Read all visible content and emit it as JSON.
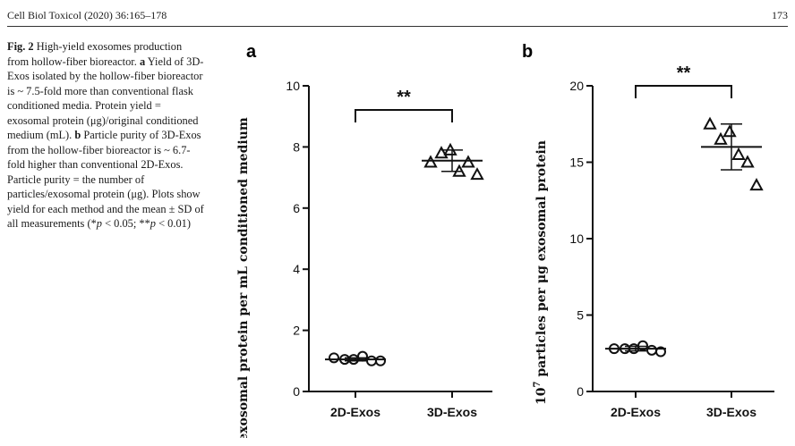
{
  "header": {
    "running_head": "Cell Biol Toxicol (2020) 36:165–178",
    "page_number": "173"
  },
  "caption": {
    "label": "Fig. 2",
    "title": " High-yield exosomes production from hollow-fiber bioreactor. ",
    "a_label": "a",
    "a_text": " Yield of 3D-Exos isolated by the hollow-fiber bioreactor is ~ 7.5-fold more than conventional flask conditioned media. Protein yield = exosomal protein (μg)/original conditioned medium (mL). ",
    "b_label": "b",
    "b_text": " Particle purity of 3D-Exos from the hollow-fiber bioreactor is ~ 6.7-fold higher than conventional 2D-Exos. Particle purity = the number of particles/exosomal protein (μg). Plots show yield for each method and the mean ± SD of all measurements (*",
    "p1": "p",
    "mid": " < 0.05; **",
    "p2": "p",
    "end": " < 0.01)"
  },
  "chart_data": [
    {
      "type": "scatter",
      "panel": "a",
      "ylabel": "μg exosomal protein per mL conditioned medium",
      "categories": [
        "2D-Exos",
        "3D-Exos"
      ],
      "ylim": [
        0,
        10
      ],
      "yticks": [
        0,
        2,
        4,
        6,
        8,
        10
      ],
      "series": [
        {
          "category": "2D-Exos",
          "marker": "circle",
          "values": [
            1.1,
            1.05,
            1.05,
            1.15,
            1.0,
            1.0
          ],
          "mean": 1.05,
          "sd": 0.05
        },
        {
          "category": "3D-Exos",
          "marker": "triangle",
          "values": [
            7.5,
            7.8,
            7.9,
            7.2,
            7.5,
            7.1
          ],
          "mean": 7.55,
          "sd": 0.35
        }
      ],
      "significance": "**"
    },
    {
      "type": "scatter",
      "panel": "b",
      "ylabel_sup": "7",
      "ylabel_main": " particles per μg exosomal protein",
      "ylabel_base": "10",
      "categories": [
        "2D-Exos",
        "3D-Exos"
      ],
      "ylim": [
        0,
        20
      ],
      "yticks": [
        0,
        5,
        10,
        15,
        20
      ],
      "series": [
        {
          "category": "2D-Exos",
          "marker": "circle",
          "values": [
            2.8,
            2.8,
            2.8,
            3.0,
            2.7,
            2.6
          ],
          "mean": 2.8,
          "sd": 0.15
        },
        {
          "category": "3D-Exos",
          "marker": "triangle",
          "values": [
            17.5,
            16.5,
            17.0,
            15.5,
            15.0,
            13.5
          ],
          "mean": 16.0,
          "sd": 1.5
        }
      ],
      "significance": "**"
    }
  ]
}
